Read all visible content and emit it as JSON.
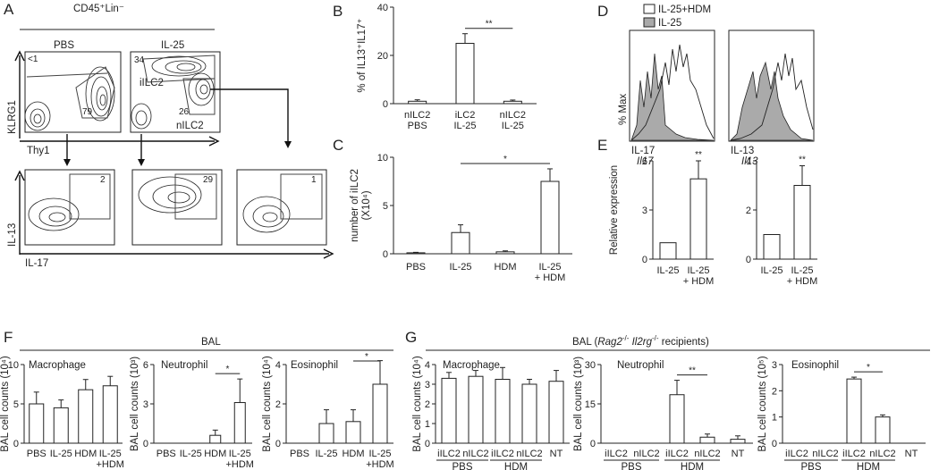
{
  "panels": {
    "A": {
      "letter": "A",
      "header": "CD45⁺Lin⁻",
      "cond_pbs": "PBS",
      "cond_il25": "IL-25",
      "y_top": "KLRG1",
      "x_top": "Thy1",
      "y_bottom": "IL-13",
      "x_bottom": "IL-17",
      "pct_pbs": "<1",
      "pct_il25_top": "34",
      "pct_79": "79",
      "pct_26": "26",
      "label_ilc2": "iILC2",
      "label_nilc2": "nILC2",
      "bottom_pcts": [
        "2",
        "29",
        "1"
      ]
    },
    "B": {
      "letter": "B"
    },
    "C": {
      "letter": "C"
    },
    "D": {
      "letter": "D",
      "legend": [
        "IL-25+HDM",
        "IL-25"
      ],
      "ylabel": "% Max",
      "xlabels": [
        "IL-17",
        "IL-13"
      ]
    },
    "E": {
      "letter": "E"
    },
    "F": {
      "letter": "F",
      "header": "BAL"
    },
    "G": {
      "letter": "G",
      "header_pre": "BAL (",
      "header_gene1": "Rag2",
      "header_sup1": "-/-",
      "header_gene2": "Il2rg",
      "header_sup2": "-/-",
      "header_post": " recipients)"
    }
  },
  "chart_data": [
    {
      "id": "B",
      "type": "bar",
      "categories": [
        "nILC2\nPBS",
        "iLC2\nIL-25",
        "nILC2\nIL-25"
      ],
      "values": [
        1,
        25,
        1
      ],
      "errors": [
        0.6,
        4,
        0.5
      ],
      "ylabel": "% of IL13⁺IL17⁺",
      "ylim": [
        0,
        40
      ],
      "yticks": [
        0,
        20,
        40
      ],
      "significance": [
        {
          "from": 1,
          "to": 2,
          "label": "**"
        }
      ]
    },
    {
      "id": "C",
      "type": "bar",
      "categories": [
        "PBS",
        "IL-25",
        "HDM",
        "IL-25\n+ HDM"
      ],
      "values": [
        0.1,
        2.2,
        0.2,
        7.5
      ],
      "errors": [
        0.05,
        0.8,
        0.1,
        1.3
      ],
      "ylabel": "number of iILC2\n(X10⁴)",
      "ylim": [
        0,
        10
      ],
      "yticks": [
        0,
        5,
        10
      ],
      "significance": [
        {
          "from": 1,
          "to": 3,
          "label": "*"
        }
      ]
    },
    {
      "id": "D1",
      "type": "area",
      "title": "IL-17",
      "series": [
        {
          "name": "IL-25+HDM",
          "fill": "#ffffff"
        },
        {
          "name": "IL-25",
          "fill": "#aaaaaa"
        }
      ]
    },
    {
      "id": "D2",
      "type": "area",
      "title": "IL-13",
      "series": [
        {
          "name": "IL-25+HDM",
          "fill": "#ffffff"
        },
        {
          "name": "IL-25",
          "fill": "#aaaaaa"
        }
      ]
    },
    {
      "id": "E1",
      "type": "bar",
      "title": "Il17",
      "categories": [
        "IL-25",
        "IL-25\n+ HDM"
      ],
      "values": [
        1,
        4.9
      ],
      "errors": [
        0,
        1.1
      ],
      "ylabel": "Relative expression",
      "ylim": [
        0,
        6
      ],
      "yticks": [
        0,
        3,
        6
      ],
      "significance": [
        {
          "over": 1,
          "label": "**"
        }
      ]
    },
    {
      "id": "E2",
      "type": "bar",
      "title": "Il13",
      "categories": [
        "IL-25",
        "IL-25\n+ HDM"
      ],
      "values": [
        1,
        3.0
      ],
      "errors": [
        0,
        0.8
      ],
      "ylim": [
        0,
        4
      ],
      "yticks": [
        0,
        2,
        4
      ],
      "significance": [
        {
          "over": 1,
          "label": "**"
        }
      ]
    },
    {
      "id": "F1",
      "type": "bar",
      "title": "Macrophage",
      "categories": [
        "PBS",
        "IL-25",
        "HDM",
        "IL-25\n+HDM"
      ],
      "values": [
        5,
        4.5,
        6.8,
        7.3
      ],
      "errors": [
        1.5,
        1.0,
        1.3,
        1.2
      ],
      "ylabel": "BAL cell counts (10⁴)",
      "ylim": [
        0,
        10
      ],
      "yticks": [
        0,
        5,
        10
      ]
    },
    {
      "id": "F2",
      "type": "bar",
      "title": "Neutrophil",
      "categories": [
        "PBS",
        "IL-25",
        "HDM",
        "IL-25\n+HDM"
      ],
      "values": [
        0,
        0,
        0.6,
        3.1
      ],
      "errors": [
        0,
        0,
        0.4,
        1.8
      ],
      "ylabel": "BAL cell counts (10³)",
      "ylim": [
        0,
        6
      ],
      "yticks": [
        0,
        3,
        6
      ],
      "significance": [
        {
          "from": 2,
          "to": 3,
          "label": "*"
        }
      ]
    },
    {
      "id": "F3",
      "type": "bar",
      "title": "Eosinophil",
      "categories": [
        "PBS",
        "IL-25",
        "HDM",
        "IL-25\n+HDM"
      ],
      "values": [
        0,
        1.0,
        1.1,
        3.0
      ],
      "errors": [
        0,
        0.7,
        0.6,
        1.2
      ],
      "ylabel": "BAL cell counts (10⁴)",
      "ylim": [
        0,
        4
      ],
      "yticks": [
        0,
        2,
        4
      ],
      "significance": [
        {
          "from": 2,
          "to": 3,
          "label": "*"
        }
      ]
    },
    {
      "id": "G1",
      "type": "bar",
      "title": "Macrophage",
      "categories": [
        "iILC2",
        "nILC2",
        "iILC2",
        "nILC2",
        "NT"
      ],
      "groups": [
        {
          "label": "PBS",
          "from": 0,
          "to": 1
        },
        {
          "label": "HDM",
          "from": 2,
          "to": 3
        }
      ],
      "values": [
        3.3,
        3.4,
        3.25,
        3.0,
        3.15
      ],
      "errors": [
        0.3,
        0.3,
        0.6,
        0.25,
        0.55
      ],
      "ylabel": "BAL cell counts (10⁴)",
      "ylim": [
        0,
        4
      ],
      "yticks": [
        0,
        1,
        2,
        3,
        4
      ]
    },
    {
      "id": "G2",
      "type": "bar",
      "title": "Neutrophil",
      "categories": [
        "iILC2",
        "nILC2",
        "iILC2",
        "nILC2",
        "NT"
      ],
      "groups": [
        {
          "label": "PBS",
          "from": 0,
          "to": 1
        },
        {
          "label": "HDM",
          "from": 2,
          "to": 3
        }
      ],
      "values": [
        0,
        0,
        18.5,
        2.3,
        1.5
      ],
      "errors": [
        0,
        0,
        5.5,
        1.2,
        1.3
      ],
      "ylabel": "BAL cell counts (10³)",
      "ylim": [
        0,
        30
      ],
      "yticks": [
        0,
        15,
        30
      ],
      "significance": [
        {
          "from": 2,
          "to": 3,
          "label": "**"
        }
      ]
    },
    {
      "id": "G3",
      "type": "bar",
      "title": "Eosinophil",
      "categories": [
        "iILC2",
        "nILC2",
        "iILC2",
        "nILC2",
        "NT"
      ],
      "groups": [
        {
          "label": "PBS",
          "from": 0,
          "to": 1
        },
        {
          "label": "HDM",
          "from": 2,
          "to": 3
        }
      ],
      "values": [
        0,
        0,
        2.45,
        1.0,
        0
      ],
      "errors": [
        0,
        0,
        0.07,
        0.08,
        0
      ],
      "ylabel": "BAL cell counts (10⁵)",
      "ylim": [
        0,
        3
      ],
      "yticks": [
        0,
        1,
        2,
        3
      ],
      "significance": [
        {
          "from": 2,
          "to": 3,
          "label": "*"
        }
      ]
    }
  ]
}
